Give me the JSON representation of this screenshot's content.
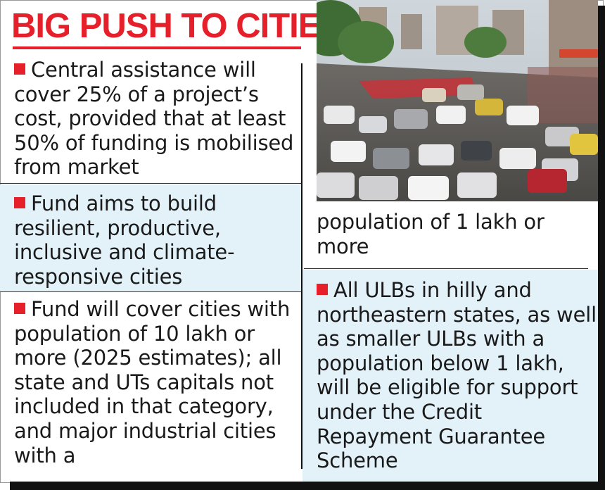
{
  "title": "BIG PUSH TO CITIES",
  "colors": {
    "title_text": "#e6202a",
    "accent_red": "#e6202a",
    "tint_blue": "#e3f1f9"
  },
  "photo": {
    "icon": "city-traffic-photo"
  },
  "points": [
    {
      "text": "Central assistance will cover 25%  of a project’s cost, provided that at least 50% of funding is mobilised from market"
    },
    {
      "text": "Fund aims to build resilient, productive, inclusive and climate-responsive cities"
    },
    {
      "text": "Fund will cover cities with  population of 10 lakh or more (2025 estimates); all state and UTs capitals not included in that category, and major industrial cities with a"
    },
    {
      "text": "population of 1 lakh or more"
    },
    {
      "text": "All ULBs in hilly and northeastern states, as well as smaller ULBs with a population below 1 lakh, will be eligible for support under the Credit Repayment Guarantee Scheme"
    }
  ]
}
